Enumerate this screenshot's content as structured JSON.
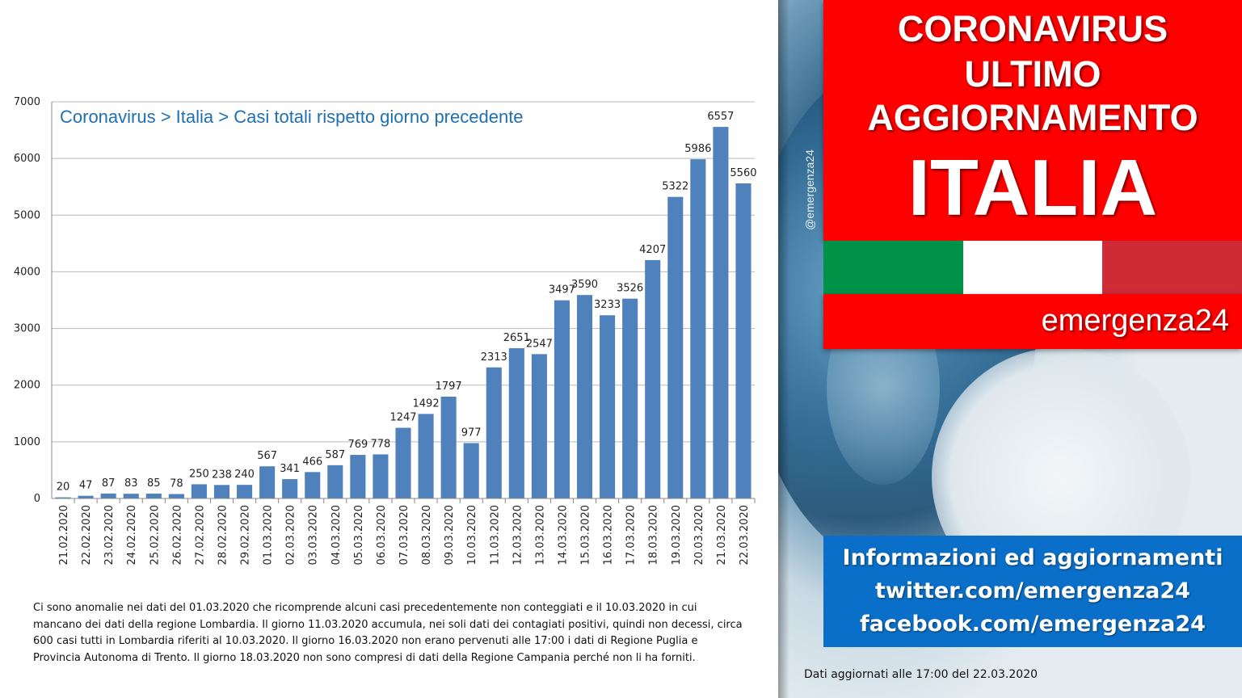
{
  "chart_data": {
    "type": "bar",
    "title": "Coronavirus > Italia > Casi totali rispetto giorno precedente",
    "categories": [
      "21.02.2020",
      "22.02.2020",
      "23.02.2020",
      "24.02.2020",
      "25.02.2020",
      "26.02.2020",
      "27.02.2020",
      "28.02.2020",
      "29.02.2020",
      "01.03.2020",
      "02.03.2020",
      "03.03.2020",
      "04.03.2020",
      "05.03.2020",
      "06.03.2020",
      "07.03.2020",
      "08.03.2020",
      "09.03.2020",
      "10.03.2020",
      "11.03.2020",
      "12.03.2020",
      "13.03.2020",
      "14.03.2020",
      "15.03.2020",
      "16.03.2020",
      "17.03.2020",
      "18.03.2020",
      "19.03.2020",
      "20.03.2020",
      "21.03.2020",
      "22.03.2020"
    ],
    "values": [
      20,
      47,
      87,
      83,
      85,
      78,
      250,
      238,
      240,
      567,
      341,
      466,
      587,
      769,
      778,
      1247,
      1492,
      1797,
      977,
      2313,
      2651,
      2547,
      3497,
      3590,
      3233,
      3526,
      4207,
      5322,
      5986,
      6557,
      5560
    ],
    "yticks": [
      0,
      1000,
      2000,
      3000,
      4000,
      5000,
      6000,
      7000
    ],
    "ylim": [
      0,
      7000
    ],
    "grid": true,
    "bar_color": "#4f81bd"
  },
  "note": "Ci sono anomalie nei dati del 01.03.2020 che ricomprende alcuni casi precedentemente non conteggiati e il 10.03.2020 in cui mancano dei dati della regione Lombardia. Il giorno 11.03.2020 accumula, nei soli dati dei contagiati positivi, quindi non decessi, circa 600 casi tutti in Lombardia riferiti al 10.03.2020. Il giorno 16.03.2020 non erano pervenuti alle 17:00 i dati di Regione Puglia e Provincia Autonoma di Trento. Il giorno 18.03.2020 non sono compresi di dati della Regione Campania perché non li ha forniti.",
  "handle": "@emergenza24",
  "headline": {
    "line1": "CORONAVIRUS",
    "line2": "ULTIMO",
    "line3": "AGGIORNAMENTO",
    "line4": "ITALIA"
  },
  "flag_colors": [
    "#009246",
    "#ffffff",
    "#ce2b37"
  ],
  "brand": "emergenza24",
  "info": {
    "line1": "Informazioni ed aggiornamenti",
    "line2": "twitter.com/emergenza24",
    "line3": "facebook.com/emergenza24"
  },
  "updated": "Dati aggiornati alle 17:00 del 22.03.2020"
}
